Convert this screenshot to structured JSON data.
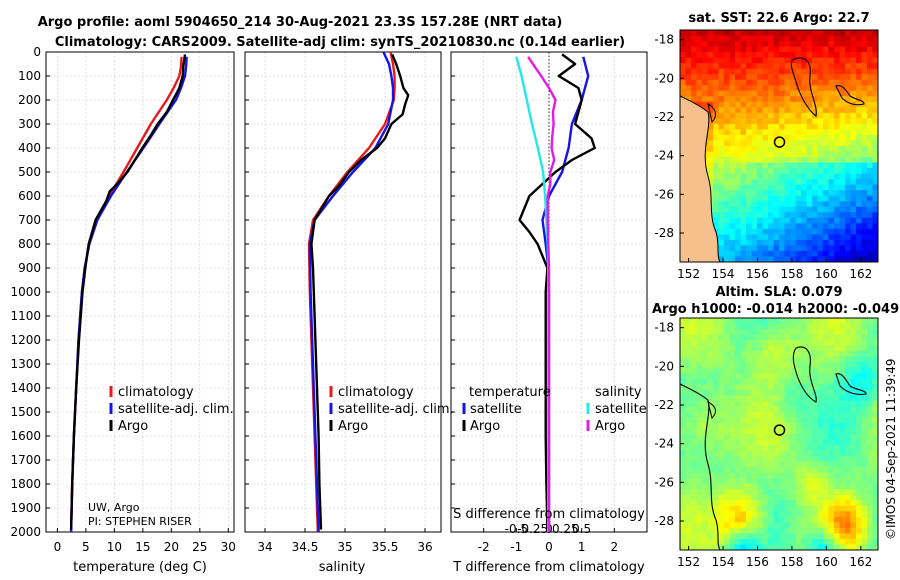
{
  "title_line1": "Argo profile: aoml 5904650_214 30-Aug-2021 23.3S 157.28E (NRT data)",
  "title_line2": "Climatology: CARS2009. Satellite-adj clim: synTS_20210830.nc (0.14d earlier)",
  "credit_line1": "UW, Argo",
  "credit_line2": "PI: STEPHEN RISER",
  "watermark": "©IMOS 04-Sep-2021 11:39:49",
  "colors": {
    "climatology": "#e8191d",
    "satellite": "#1414e6",
    "argo": "#000000",
    "cyan": "#23e8e8",
    "magenta": "#e619e6",
    "land": "#f5c08c"
  },
  "chart_data": [
    {
      "type": "line",
      "name": "temperature",
      "xlabel": "temperature (deg C)",
      "xlim": [
        -2,
        31
      ],
      "xticks": [
        0,
        5,
        10,
        15,
        20,
        25,
        30
      ],
      "xtick_labels": [
        "0",
        "5",
        "10",
        "15",
        "20",
        "25",
        "30"
      ],
      "ylim": [
        2000,
        0
      ],
      "yticks": [
        0,
        100,
        200,
        300,
        400,
        500,
        600,
        700,
        800,
        900,
        1000,
        1100,
        1200,
        1300,
        1400,
        1500,
        1600,
        1700,
        1800,
        1900,
        2000
      ],
      "ytick_labels": [
        "0",
        "100",
        "200",
        "300",
        "400",
        "500",
        "600",
        "700",
        "800",
        "900",
        "1000",
        "1100",
        "1200",
        "1300",
        "1400",
        "1500",
        "1600",
        "1700",
        "1800",
        "1900",
        "2000"
      ],
      "legend": [
        "climatology",
        "satellite-adj. clim.",
        "Argo"
      ],
      "series": [
        {
          "name": "climatology",
          "color_key": "climatology",
          "depth": [
            20,
            60,
            100,
            150,
            200,
            300,
            400,
            500,
            600,
            700,
            800,
            900,
            1000,
            1200,
            1400,
            1600,
            1800,
            2000
          ],
          "values": [
            21.8,
            21.7,
            21.4,
            20.4,
            19.2,
            16.4,
            14.0,
            11.6,
            9.1,
            7.0,
            5.6,
            4.8,
            4.3,
            3.7,
            3.3,
            2.9,
            2.6,
            2.4
          ]
        },
        {
          "name": "satellite-adj. clim.",
          "color_key": "satellite",
          "depth": [
            20,
            60,
            100,
            150,
            200,
            300,
            400,
            500,
            600,
            700,
            800,
            900,
            1000,
            1200,
            1400,
            1600,
            1800,
            2000
          ],
          "values": [
            22.7,
            22.6,
            22.4,
            21.7,
            20.8,
            17.9,
            15.1,
            12.2,
            9.4,
            7.0,
            5.6,
            4.8,
            4.3,
            3.7,
            3.3,
            2.9,
            2.6,
            2.4
          ]
        },
        {
          "name": "Argo",
          "color_key": "argo",
          "depth": [
            10,
            60,
            100,
            150,
            200,
            250,
            300,
            350,
            400,
            450,
            500,
            550,
            580,
            620,
            700,
            800,
            900,
            1000,
            1200,
            1400,
            1600,
            1800,
            1990
          ],
          "values": [
            22.4,
            22.1,
            22.0,
            21.4,
            20.3,
            19.2,
            17.6,
            16.3,
            14.9,
            13.6,
            12.3,
            10.5,
            9.2,
            8.6,
            6.7,
            5.5,
            4.9,
            4.4,
            3.8,
            3.3,
            2.9,
            2.6,
            2.4
          ]
        }
      ]
    },
    {
      "type": "line",
      "name": "salinity",
      "xlabel": "salinity",
      "xlim": [
        33.75,
        36.2
      ],
      "xticks": [
        34,
        34.5,
        35,
        35.5,
        36
      ],
      "xtick_labels": [
        "34",
        "34.5",
        "35",
        "35.5",
        "36"
      ],
      "ylim": [
        2000,
        0
      ],
      "legend": [
        "climatology",
        "satellite-adj. clim.",
        "Argo"
      ],
      "series": [
        {
          "name": "climatology",
          "color_key": "climatology",
          "depth": [
            0,
            50,
            100,
            150,
            200,
            300,
            400,
            500,
            600,
            700,
            800,
            1000,
            1200,
            1400,
            1600,
            1800,
            2000
          ],
          "values": [
            35.57,
            35.6,
            35.62,
            35.62,
            35.61,
            35.5,
            35.3,
            35.03,
            34.8,
            34.6,
            34.55,
            34.56,
            34.58,
            34.6,
            34.62,
            34.64,
            34.66
          ]
        },
        {
          "name": "satellite-adj. clim.",
          "color_key": "satellite",
          "depth": [
            0,
            50,
            100,
            150,
            200,
            300,
            400,
            500,
            600,
            700,
            800,
            1000,
            1200,
            1400,
            1600,
            1800,
            2000
          ],
          "values": [
            35.48,
            35.55,
            35.58,
            35.6,
            35.6,
            35.54,
            35.38,
            35.1,
            34.85,
            34.62,
            34.56,
            34.57,
            34.59,
            34.61,
            34.63,
            34.65,
            34.67
          ]
        },
        {
          "name": "Argo",
          "color_key": "argo",
          "depth": [
            10,
            50,
            100,
            150,
            180,
            220,
            260,
            300,
            360,
            400,
            450,
            500,
            560,
            600,
            700,
            800,
            900,
            1000,
            1200,
            1400,
            1600,
            1800,
            1990
          ],
          "values": [
            35.59,
            35.64,
            35.69,
            35.73,
            35.79,
            35.75,
            35.72,
            35.58,
            35.5,
            35.4,
            35.2,
            35.05,
            34.92,
            34.8,
            34.62,
            34.58,
            34.6,
            34.61,
            34.63,
            34.65,
            34.67,
            34.68,
            34.7
          ]
        }
      ]
    },
    {
      "type": "line",
      "name": "difference",
      "xlabel": "T difference from climatology",
      "xlabel_top": "S difference from climatology",
      "xlim": [
        -3,
        3
      ],
      "xticks": [
        -2,
        -1,
        0,
        1,
        2
      ],
      "xtick_labels": [
        "-2",
        "-1",
        "0",
        "1",
        "2"
      ],
      "secondary_xticks": [
        -0.5,
        -0.25,
        0,
        0.25,
        0.5
      ],
      "secondary_xtick_labels": [
        "-0.5",
        "-0.25",
        "0",
        "0.25",
        "0.5"
      ],
      "ylim": [
        2000,
        0
      ],
      "legend_headers": [
        "temperature",
        "salinity"
      ],
      "legend": [
        "satellite",
        "Argo",
        "satellite",
        "Argo"
      ],
      "series": [
        {
          "name": "temperature satellite",
          "color_key": "satellite",
          "units": "T",
          "depth": [
            20,
            100,
            200,
            300,
            400,
            500,
            600,
            700,
            800,
            900,
            1000,
            1200,
            1500,
            2000
          ],
          "values": [
            1.05,
            1.2,
            1.0,
            0.7,
            0.6,
            0.4,
            0.0,
            -0.2,
            -0.1,
            -0.02,
            0.0,
            0.0,
            0.0,
            0.0
          ]
        },
        {
          "name": "temperature Argo",
          "color_key": "argo",
          "units": "T",
          "depth": [
            10,
            50,
            100,
            150,
            200,
            300,
            360,
            400,
            450,
            500,
            600,
            700,
            750,
            800,
            900,
            1000,
            1200,
            1400,
            1600,
            1800,
            1990
          ],
          "values": [
            0.4,
            0.8,
            0.3,
            0.9,
            1.0,
            0.8,
            1.3,
            1.4,
            0.7,
            0.2,
            -0.6,
            -0.9,
            -0.6,
            -0.35,
            -0.05,
            -0.1,
            -0.1,
            -0.1,
            -0.1,
            -0.08,
            -0.05
          ]
        },
        {
          "name": "salinity satellite",
          "color_key": "cyan",
          "units": "S",
          "depth": [
            20,
            100,
            200,
            300,
            400,
            500,
            600,
            700,
            800,
            900,
            1000,
            1200,
            1500,
            2000
          ],
          "values": [
            -0.5,
            -0.42,
            -0.34,
            -0.26,
            -0.17,
            -0.09,
            -0.06,
            -0.04,
            -0.02,
            -0.01,
            -0.01,
            -0.01,
            -0.01,
            -0.01
          ]
        },
        {
          "name": "salinity Argo",
          "color_key": "magenta",
          "units": "S",
          "depth": [
            20,
            60,
            100,
            150,
            200,
            250,
            300,
            350,
            400,
            450,
            500,
            550,
            600,
            700,
            800,
            900,
            1000,
            1200,
            1500,
            2000
          ],
          "values": [
            -0.32,
            -0.22,
            -0.12,
            0.0,
            0.1,
            0.06,
            0.07,
            0.05,
            0.04,
            0.08,
            0.02,
            0.02,
            -0.02,
            -0.02,
            -0.01,
            0.0,
            0.0,
            0.0,
            0.0,
            0.0
          ]
        }
      ]
    },
    {
      "type": "heatmap",
      "name": "sst-map",
      "title": "sat. SST: 22.6 Argo: 22.7",
      "xlim": [
        151.5,
        163
      ],
      "ylim": [
        -29.5,
        -17.5
      ],
      "xticks": [
        152,
        154,
        156,
        158,
        160,
        162
      ],
      "xtick_labels": [
        "152",
        "154",
        "156",
        "158",
        "160",
        "162"
      ],
      "yticks": [
        -18,
        -20,
        -22,
        -24,
        -26,
        -28
      ],
      "ytick_labels": [
        "-18",
        "-20",
        "-22",
        "-24",
        "-26",
        "-28"
      ],
      "argo_position": {
        "lon": 157.28,
        "lat": -23.3
      },
      "colorscale": "jet"
    },
    {
      "type": "heatmap",
      "name": "sla-map",
      "title": "Altim. SLA: 0.079",
      "subtitle": "Argo h1000: -0.014 h2000: -0.049",
      "xlim": [
        151.5,
        163
      ],
      "ylim": [
        -29.5,
        -17.5
      ],
      "xticks": [
        152,
        154,
        156,
        158,
        160,
        162
      ],
      "xtick_labels": [
        "152",
        "154",
        "156",
        "158",
        "160",
        "162"
      ],
      "yticks": [
        -18,
        -20,
        -22,
        -24,
        -26,
        -28
      ],
      "ytick_labels": [
        "-18",
        "-20",
        "-22",
        "-24",
        "-26",
        "-28"
      ],
      "argo_position": {
        "lon": 157.28,
        "lat": -23.3
      },
      "colorscale": "jet"
    }
  ]
}
